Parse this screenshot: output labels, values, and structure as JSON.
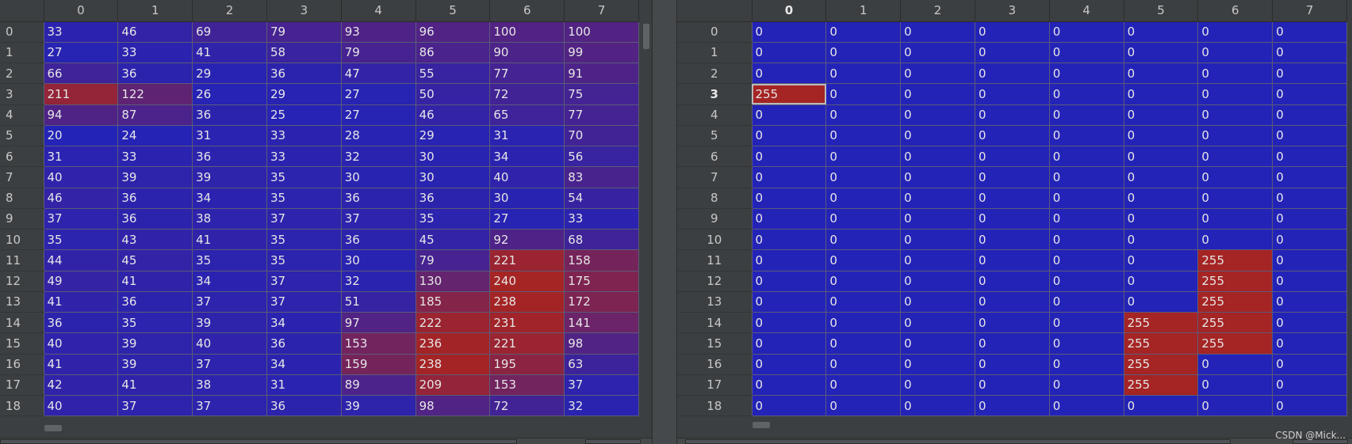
{
  "left_table": {
    "columns": [
      "0",
      "1",
      "2",
      "3",
      "4",
      "5",
      "6",
      "7"
    ],
    "rows": [
      {
        "label": "0",
        "values": [
          33,
          46,
          69,
          79,
          93,
          96,
          100,
          100
        ]
      },
      {
        "label": "1",
        "values": [
          27,
          33,
          41,
          58,
          79,
          86,
          90,
          99
        ]
      },
      {
        "label": "2",
        "values": [
          66,
          36,
          29,
          36,
          47,
          55,
          77,
          91
        ]
      },
      {
        "label": "3",
        "values": [
          211,
          122,
          26,
          29,
          27,
          50,
          72,
          75
        ]
      },
      {
        "label": "4",
        "values": [
          94,
          87,
          36,
          25,
          27,
          46,
          65,
          77
        ]
      },
      {
        "label": "5",
        "values": [
          20,
          24,
          31,
          33,
          28,
          29,
          31,
          70
        ]
      },
      {
        "label": "6",
        "values": [
          31,
          33,
          36,
          33,
          32,
          30,
          34,
          56
        ]
      },
      {
        "label": "7",
        "values": [
          40,
          39,
          39,
          35,
          30,
          30,
          40,
          83
        ]
      },
      {
        "label": "8",
        "values": [
          46,
          36,
          34,
          35,
          36,
          36,
          30,
          54
        ]
      },
      {
        "label": "9",
        "values": [
          37,
          36,
          38,
          37,
          37,
          35,
          27,
          33
        ]
      },
      {
        "label": "10",
        "values": [
          35,
          43,
          41,
          35,
          36,
          45,
          92,
          68
        ]
      },
      {
        "label": "11",
        "values": [
          44,
          45,
          35,
          35,
          30,
          79,
          221,
          158
        ]
      },
      {
        "label": "12",
        "values": [
          49,
          41,
          34,
          37,
          32,
          130,
          240,
          175
        ]
      },
      {
        "label": "13",
        "values": [
          41,
          36,
          37,
          37,
          51,
          185,
          238,
          172
        ]
      },
      {
        "label": "14",
        "values": [
          36,
          35,
          39,
          34,
          97,
          222,
          231,
          141
        ]
      },
      {
        "label": "15",
        "values": [
          40,
          39,
          40,
          36,
          153,
          236,
          221,
          98
        ]
      },
      {
        "label": "16",
        "values": [
          41,
          39,
          37,
          34,
          159,
          238,
          195,
          63
        ]
      },
      {
        "label": "17",
        "values": [
          42,
          41,
          38,
          31,
          89,
          209,
          153,
          37
        ]
      },
      {
        "label": "18",
        "values": [
          40,
          37,
          37,
          36,
          39,
          98,
          72,
          32
        ]
      }
    ]
  },
  "right_table": {
    "columns": [
      "0",
      "1",
      "2",
      "3",
      "4",
      "5",
      "6",
      "7"
    ],
    "current_column": "0",
    "current_row": "3",
    "selected_cell": {
      "row": 3,
      "col": 0
    },
    "rows": [
      {
        "label": "0",
        "values": [
          0,
          0,
          0,
          0,
          0,
          0,
          0,
          0
        ]
      },
      {
        "label": "1",
        "values": [
          0,
          0,
          0,
          0,
          0,
          0,
          0,
          0
        ]
      },
      {
        "label": "2",
        "values": [
          0,
          0,
          0,
          0,
          0,
          0,
          0,
          0
        ]
      },
      {
        "label": "3",
        "values": [
          255,
          0,
          0,
          0,
          0,
          0,
          0,
          0
        ]
      },
      {
        "label": "4",
        "values": [
          0,
          0,
          0,
          0,
          0,
          0,
          0,
          0
        ]
      },
      {
        "label": "5",
        "values": [
          0,
          0,
          0,
          0,
          0,
          0,
          0,
          0
        ]
      },
      {
        "label": "6",
        "values": [
          0,
          0,
          0,
          0,
          0,
          0,
          0,
          0
        ]
      },
      {
        "label": "7",
        "values": [
          0,
          0,
          0,
          0,
          0,
          0,
          0,
          0
        ]
      },
      {
        "label": "8",
        "values": [
          0,
          0,
          0,
          0,
          0,
          0,
          0,
          0
        ]
      },
      {
        "label": "9",
        "values": [
          0,
          0,
          0,
          0,
          0,
          0,
          0,
          0
        ]
      },
      {
        "label": "10",
        "values": [
          0,
          0,
          0,
          0,
          0,
          0,
          0,
          0
        ]
      },
      {
        "label": "11",
        "values": [
          0,
          0,
          0,
          0,
          0,
          0,
          255,
          0
        ]
      },
      {
        "label": "12",
        "values": [
          0,
          0,
          0,
          0,
          0,
          0,
          255,
          0
        ]
      },
      {
        "label": "13",
        "values": [
          0,
          0,
          0,
          0,
          0,
          0,
          255,
          0
        ]
      },
      {
        "label": "14",
        "values": [
          0,
          0,
          0,
          0,
          0,
          255,
          255,
          0
        ]
      },
      {
        "label": "15",
        "values": [
          0,
          0,
          0,
          0,
          0,
          255,
          255,
          0
        ]
      },
      {
        "label": "16",
        "values": [
          0,
          0,
          0,
          0,
          0,
          255,
          0,
          0
        ]
      },
      {
        "label": "17",
        "values": [
          0,
          0,
          0,
          0,
          0,
          255,
          0,
          0
        ]
      },
      {
        "label": "18",
        "values": [
          0,
          0,
          0,
          0,
          0,
          0,
          0,
          0
        ]
      }
    ]
  },
  "colors": {
    "low": "#2323b8",
    "high": "#a52424",
    "background": "#3c3f41"
  },
  "watermark": "CSDN @Mick..."
}
